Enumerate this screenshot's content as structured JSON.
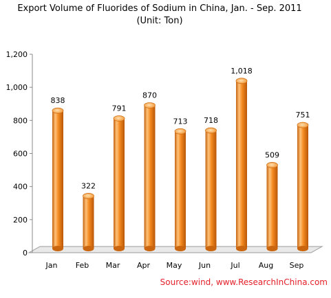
{
  "chart_data": {
    "type": "bar",
    "title": "Export Volume of Fluorides of Sodium in China, Jan. - Sep. 2011",
    "subtitle": "(Unit: Ton)",
    "categories": [
      "Jan",
      "Feb",
      "Mar",
      "Apr",
      "May",
      "Jun",
      "Jul",
      "Aug",
      "Sep"
    ],
    "values": [
      838,
      322,
      791,
      870,
      713,
      718,
      1018,
      509,
      751
    ],
    "data_labels": [
      "838",
      "322",
      "791",
      "870",
      "713",
      "718",
      "1,018",
      "509",
      "751"
    ],
    "y_ticks": [
      0,
      200,
      400,
      600,
      800,
      1000,
      1200
    ],
    "y_tick_labels": [
      "0",
      "200",
      "400",
      "600",
      "800",
      "1,000",
      "1,200"
    ],
    "ylim": [
      0,
      1200
    ],
    "xlabel": "",
    "ylabel": "",
    "grid": false,
    "source": "Source:wind, www.ResearchInChina.com",
    "colors": {
      "bar_main": "#f0861e",
      "bar_highlight": "#ffd39a",
      "bar_dark": "#b85a0a",
      "source_text": "#e5202a",
      "axis": "#888888"
    }
  }
}
